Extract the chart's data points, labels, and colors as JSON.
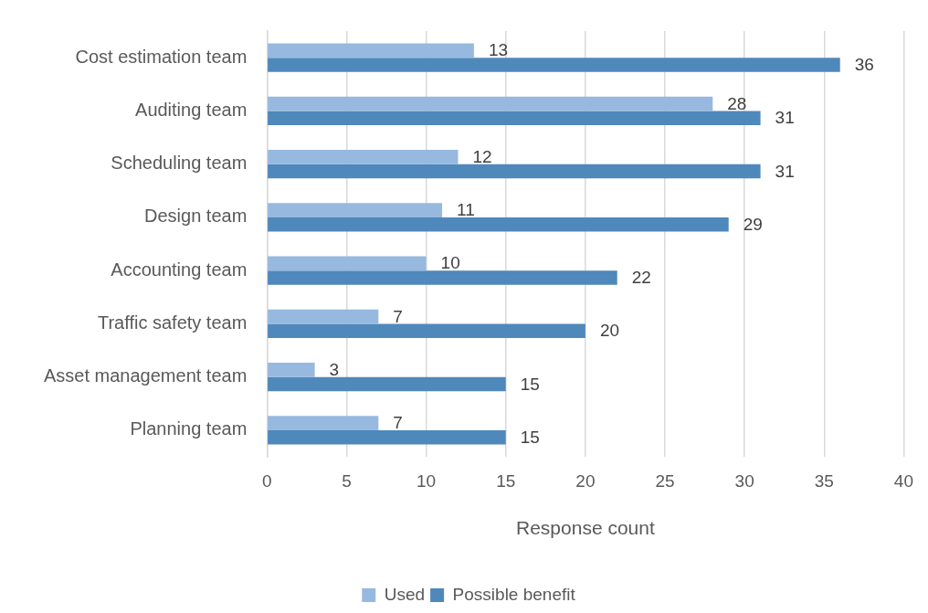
{
  "chart_data": {
    "type": "bar",
    "orientation": "horizontal",
    "categories": [
      "Cost estimation team",
      "Auditing team",
      "Scheduling team",
      "Design team",
      "Accounting team",
      "Traffic safety team",
      "Asset management team",
      "Planning team"
    ],
    "series": [
      {
        "name": "Used",
        "color": "#97b9e0",
        "values": [
          13,
          28,
          12,
          11,
          10,
          7,
          3,
          7
        ]
      },
      {
        "name": "Possible benefit",
        "color": "#4f88bb",
        "values": [
          36,
          31,
          31,
          29,
          22,
          20,
          15,
          15
        ]
      }
    ],
    "xlabel": "Response count",
    "xlim": [
      0,
      40
    ],
    "xticks": [
      0,
      5,
      10,
      15,
      20,
      25,
      30,
      35,
      40
    ],
    "grid": "x",
    "legend": "bottom",
    "data_labels": true
  }
}
